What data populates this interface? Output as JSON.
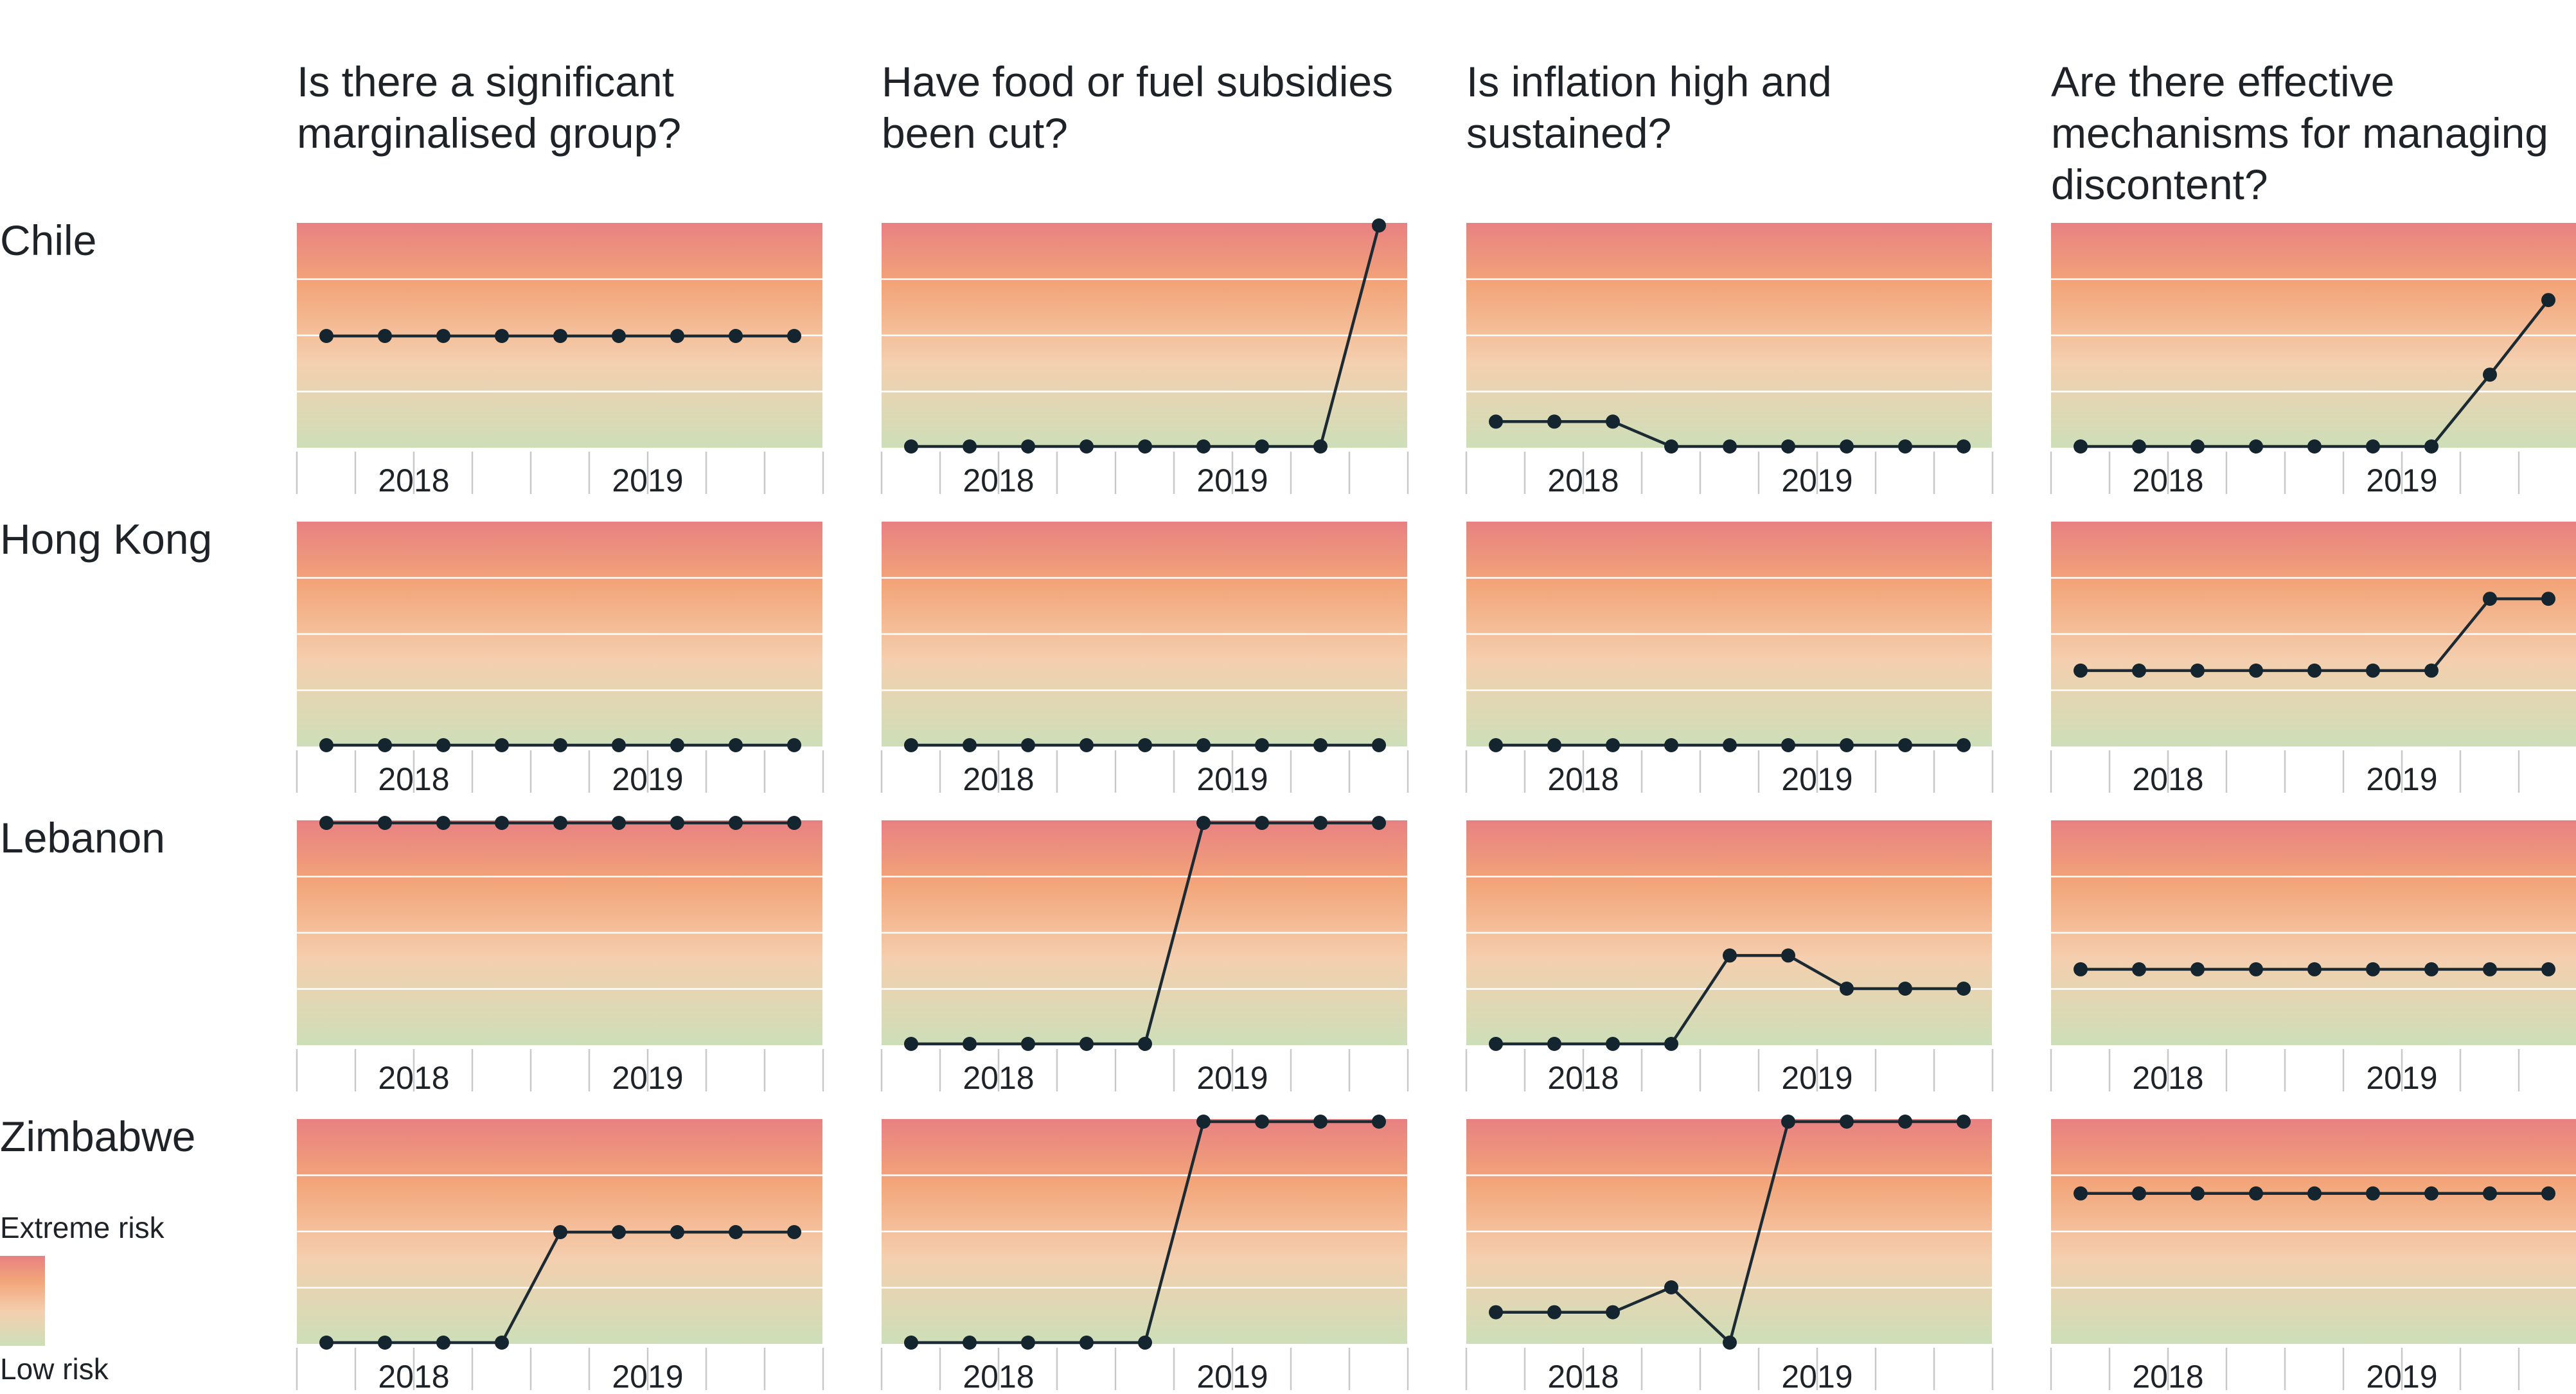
{
  "chart_data": {
    "type": "line",
    "columns": [
      "Is there a significant marginalised group?",
      "Have food or fuel subsidies been cut?",
      "Is inflation high and sustained?",
      "Are there effective mechanisms for managing discontent?"
    ],
    "rows": [
      "Chile",
      "Hong Kong",
      "Lebanon",
      "Zimbabwe"
    ],
    "x_tick_labels": [
      "2018",
      "2019"
    ],
    "y_range": [
      0,
      4
    ],
    "grid": true,
    "scale_legend": {
      "top": "Extreme risk",
      "bottom": "Low risk"
    },
    "colors": {
      "extreme": "#e88182",
      "high": "#f3a579",
      "mid": "#f4cfaf",
      "low": "#cddfb8",
      "line": "#1b2a33"
    },
    "panels": [
      [
        [
          2,
          2,
          2,
          2,
          2,
          2,
          2,
          2,
          2
        ],
        [
          0,
          0,
          0,
          0,
          0,
          0,
          0,
          0,
          4
        ],
        [
          0.45,
          0.45,
          0.45,
          0,
          0,
          0,
          0,
          0,
          0
        ],
        [
          0,
          0,
          0,
          0,
          0,
          0,
          0,
          1.3,
          2.65
        ]
      ],
      [
        [
          0,
          0,
          0,
          0,
          0,
          0,
          0,
          0,
          0
        ],
        [
          0,
          0,
          0,
          0,
          0,
          0,
          0,
          0,
          0
        ],
        [
          0,
          0,
          0,
          0,
          0,
          0,
          0,
          0,
          0
        ],
        [
          1.35,
          1.35,
          1.35,
          1.35,
          1.35,
          1.35,
          1.35,
          2.65,
          2.65
        ]
      ],
      [
        [
          4,
          4,
          4,
          4,
          4,
          4,
          4,
          4,
          4
        ],
        [
          0,
          0,
          0,
          0,
          0,
          4,
          4,
          4,
          4
        ],
        [
          0,
          0,
          0,
          0,
          1.6,
          1.6,
          1,
          1,
          1
        ],
        [
          1.35,
          1.35,
          1.35,
          1.35,
          1.35,
          1.35,
          1.35,
          1.35,
          1.35
        ]
      ],
      [
        [
          0,
          0,
          0,
          0,
          2,
          2,
          2,
          2,
          2
        ],
        [
          0,
          0,
          0,
          0,
          0,
          4,
          4,
          4,
          4
        ],
        [
          0.55,
          0.55,
          0.55,
          1,
          0,
          4,
          4,
          4,
          4
        ],
        [
          2.7,
          2.7,
          2.7,
          2.7,
          2.7,
          2.7,
          2.7,
          2.7,
          2.7
        ]
      ]
    ]
  }
}
